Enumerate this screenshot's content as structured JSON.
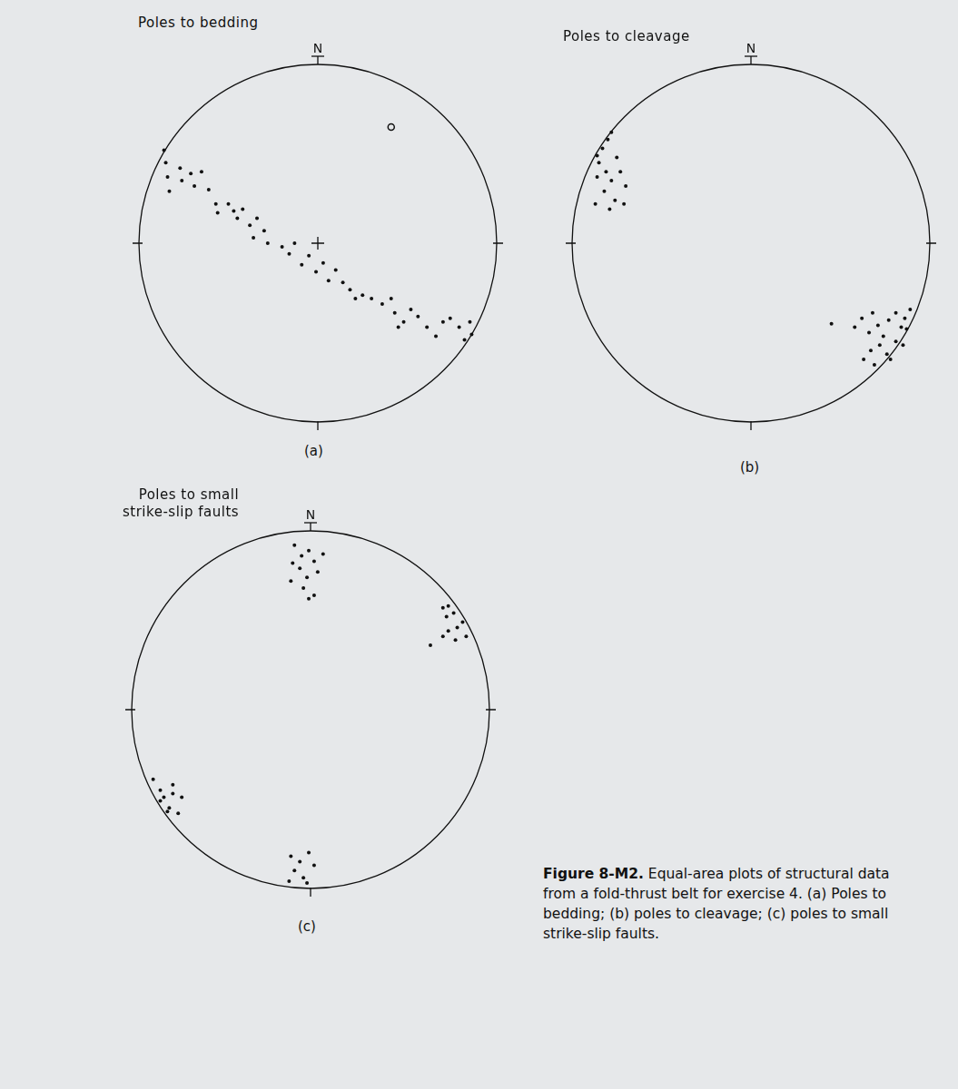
{
  "chart_data": [
    {
      "type": "scatter",
      "title": [
        "Poles to bedding"
      ],
      "label": "(a)",
      "north_label": "N",
      "xlim": [
        -1,
        1
      ],
      "ylim": [
        -1,
        1
      ],
      "tick_labels": false,
      "grid": false,
      "series": [
        {
          "color": "#111111",
          "marker": "circle",
          "values": [
            [
              -0.86,
              0.52
            ],
            [
              -0.85,
              0.45
            ],
            [
              -0.84,
              0.37
            ],
            [
              -0.83,
              0.29
            ],
            [
              -0.77,
              0.42
            ],
            [
              -0.76,
              0.35
            ],
            [
              -0.71,
              0.39
            ],
            [
              -0.69,
              0.32
            ],
            [
              -0.65,
              0.4
            ],
            [
              -0.61,
              0.3
            ],
            [
              -0.57,
              0.22
            ],
            [
              -0.56,
              0.17
            ],
            [
              -0.5,
              0.22
            ],
            [
              -0.47,
              0.18
            ],
            [
              -0.45,
              0.14
            ],
            [
              -0.42,
              0.19
            ],
            [
              -0.38,
              0.1
            ],
            [
              -0.36,
              0.03
            ],
            [
              -0.34,
              0.14
            ],
            [
              -0.3,
              0.07
            ],
            [
              -0.28,
              0.0
            ],
            [
              -0.2,
              -0.02
            ],
            [
              -0.16,
              -0.06
            ],
            [
              -0.13,
              0.0
            ],
            [
              -0.09,
              -0.12
            ],
            [
              -0.05,
              -0.07
            ],
            [
              -0.01,
              -0.16
            ],
            [
              0.03,
              -0.11
            ],
            [
              0.06,
              -0.21
            ],
            [
              0.1,
              -0.15
            ],
            [
              0.14,
              -0.22
            ],
            [
              0.18,
              -0.26
            ],
            [
              0.21,
              -0.31
            ],
            [
              0.25,
              -0.29
            ],
            [
              0.3,
              -0.31
            ],
            [
              0.36,
              -0.34
            ],
            [
              0.41,
              -0.31
            ],
            [
              0.43,
              -0.39
            ],
            [
              0.48,
              -0.44
            ],
            [
              0.52,
              -0.37
            ],
            [
              0.56,
              -0.41
            ],
            [
              0.61,
              -0.47
            ],
            [
              0.66,
              -0.52
            ],
            [
              0.7,
              -0.44
            ],
            [
              0.74,
              -0.42
            ],
            [
              0.79,
              -0.47
            ],
            [
              0.82,
              -0.54
            ],
            [
              0.85,
              -0.44
            ],
            [
              0.86,
              -0.51
            ],
            [
              0.45,
              -0.47
            ]
          ]
        },
        {
          "color": "#111111",
          "marker": "ring",
          "values": [
            [
              0.41,
              0.65
            ]
          ]
        }
      ]
    },
    {
      "type": "scatter",
      "title": [
        "Poles to cleavage"
      ],
      "label": "(b)",
      "north_label": "N",
      "xlim": [
        -1,
        1
      ],
      "ylim": [
        -1,
        1
      ],
      "tick_labels": false,
      "grid": false,
      "series": [
        {
          "color": "#111111",
          "marker": "circle",
          "values": [
            [
              -0.8,
              0.58
            ],
            [
              -0.83,
              0.53
            ],
            [
              -0.85,
              0.45
            ],
            [
              -0.81,
              0.4
            ],
            [
              -0.78,
              0.35
            ],
            [
              -0.82,
              0.29
            ],
            [
              -0.75,
              0.48
            ],
            [
              -0.73,
              0.4
            ],
            [
              -0.7,
              0.32
            ],
            [
              -0.76,
              0.24
            ],
            [
              -0.87,
              0.22
            ],
            [
              -0.79,
              0.19
            ],
            [
              -0.71,
              0.22
            ],
            [
              -0.78,
              0.62
            ],
            [
              -0.86,
              0.49
            ],
            [
              -0.86,
              0.37
            ],
            [
              0.58,
              -0.47
            ],
            [
              0.62,
              -0.42
            ],
            [
              0.66,
              -0.5
            ],
            [
              0.68,
              -0.39
            ],
            [
              0.71,
              -0.46
            ],
            [
              0.74,
              -0.52
            ],
            [
              0.77,
              -0.43
            ],
            [
              0.81,
              -0.39
            ],
            [
              0.84,
              -0.47
            ],
            [
              0.86,
              -0.42
            ],
            [
              0.89,
              -0.37
            ],
            [
              0.72,
              -0.57
            ],
            [
              0.76,
              -0.62
            ],
            [
              0.81,
              -0.55
            ],
            [
              0.85,
              -0.57
            ],
            [
              0.63,
              -0.65
            ],
            [
              0.67,
              -0.6
            ],
            [
              0.78,
              -0.65
            ],
            [
              0.87,
              -0.48
            ],
            [
              0.69,
              -0.68
            ],
            [
              0.45,
              -0.45
            ]
          ]
        }
      ]
    },
    {
      "type": "scatter",
      "title": [
        "Poles to small",
        "strike-slip faults"
      ],
      "label": "(c)",
      "north_label": "N",
      "xlim": [
        -1,
        1
      ],
      "ylim": [
        -1,
        1
      ],
      "tick_labels": false,
      "grid": false,
      "series": [
        {
          "color": "#111111",
          "marker": "circle",
          "values": [
            [
              -0.09,
              0.92
            ],
            [
              -0.05,
              0.86
            ],
            [
              -0.01,
              0.89
            ],
            [
              0.02,
              0.83
            ],
            [
              -0.06,
              0.79
            ],
            [
              -0.02,
              0.74
            ],
            [
              0.04,
              0.77
            ],
            [
              -0.11,
              0.72
            ],
            [
              -0.04,
              0.68
            ],
            [
              0.02,
              0.64
            ],
            [
              -0.01,
              0.62
            ],
            [
              0.07,
              0.87
            ],
            [
              -0.1,
              0.82
            ],
            [
              0.74,
              0.57
            ],
            [
              0.76,
              0.52
            ],
            [
              0.8,
              0.54
            ],
            [
              0.82,
              0.46
            ],
            [
              0.77,
              0.44
            ],
            [
              0.85,
              0.49
            ],
            [
              0.74,
              0.41
            ],
            [
              0.81,
              0.39
            ],
            [
              0.87,
              0.41
            ],
            [
              0.67,
              0.36
            ],
            [
              0.77,
              0.58
            ],
            [
              -0.88,
              -0.39
            ],
            [
              -0.84,
              -0.45
            ],
            [
              -0.82,
              -0.49
            ],
            [
              -0.84,
              -0.51
            ],
            [
              -0.79,
              -0.55
            ],
            [
              -0.8,
              -0.57
            ],
            [
              -0.77,
              -0.47
            ],
            [
              -0.72,
              -0.49
            ],
            [
              -0.74,
              -0.58
            ],
            [
              -0.77,
              -0.42
            ],
            [
              -0.11,
              -0.82
            ],
            [
              -0.06,
              -0.85
            ],
            [
              -0.01,
              -0.8
            ],
            [
              -0.09,
              -0.9
            ],
            [
              -0.04,
              -0.94
            ],
            [
              0.02,
              -0.87
            ],
            [
              -0.12,
              -0.96
            ],
            [
              -0.02,
              -0.97
            ]
          ]
        }
      ]
    }
  ],
  "caption": {
    "label": "Figure 8-M2.",
    "text": "Equal-area plots of structural data from a fold-thrust belt for exercise 4. (a) Poles to bedding; (b) poles to cleavage; (c) poles to small strike-slip faults."
  }
}
